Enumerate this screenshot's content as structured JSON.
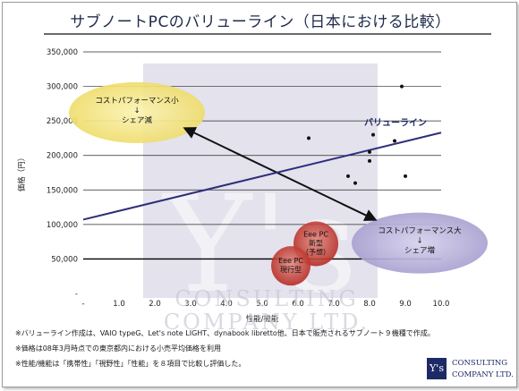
{
  "title": "サブノートPCのバリューライン（日本における比較）",
  "chart_data": {
    "type": "scatter",
    "xlabel": "性能/機能",
    "ylabel": "価格（円）",
    "xlim": [
      0,
      10
    ],
    "ylim": [
      0,
      350000
    ],
    "xticks": [
      "-",
      "1.0",
      "2.0",
      "3.0",
      "4.0",
      "5.0",
      "6.0",
      "7.0",
      "8.0",
      "9.0",
      "10.0"
    ],
    "yticks": [
      "-",
      "50,000",
      "100,000",
      "150,000",
      "200,000",
      "250,000",
      "300,000",
      "350,000"
    ],
    "grid": true,
    "points": [
      {
        "x": 6.3,
        "y": 225000
      },
      {
        "x": 7.4,
        "y": 170000
      },
      {
        "x": 7.6,
        "y": 160000
      },
      {
        "x": 8.0,
        "y": 205000
      },
      {
        "x": 8.0,
        "y": 192000
      },
      {
        "x": 8.1,
        "y": 230000
      },
      {
        "x": 8.7,
        "y": 221000
      },
      {
        "x": 8.9,
        "y": 300000
      },
      {
        "x": 9.0,
        "y": 170000
      }
    ],
    "value_line": {
      "label": "バリューライン",
      "x": [
        0,
        10
      ],
      "y": [
        107000,
        233000
      ],
      "color": "#2e2e7a"
    },
    "bubbles": [
      {
        "label": "Eee PC\n新型\n（予想）",
        "x": 6.5,
        "y": 72000,
        "color": "#c0392b"
      },
      {
        "label": "Eee PC\n現行型",
        "x": 5.8,
        "y": 40000,
        "color": "#c0392b"
      }
    ],
    "annotations": [
      {
        "text": "コストパフォーマンス小\n↓\nシェア減",
        "x": 1.5,
        "y": 262000,
        "color": "#f2e07a"
      },
      {
        "text": "コストパフォーマンス大\n↓\nシェア増",
        "x": 9.4,
        "y": 73000,
        "color": "#b9b3d9"
      }
    ],
    "arrow": {
      "from": [
        2.85,
        239000
      ],
      "to": [
        8.15,
        107000
      ]
    },
    "reference_line_y": 50000
  },
  "notes": [
    "※バリューライン作成は、VAIO typeG、Let's note LIGHT、dynabook libretto他、日本で販売されるサブノート９機種で作成。",
    "※価格は08年3月時点での東京都内における小売平均価格を利用",
    "※性能/機能は「携帯性」「視野性」「性能」を８項目で比較し評価した。"
  ],
  "logo": {
    "mark": "Y's",
    "line1": "CONSULTING",
    "line2": "COMPANY LTD."
  },
  "watermark": "CONSULTING COMPANY LTD."
}
